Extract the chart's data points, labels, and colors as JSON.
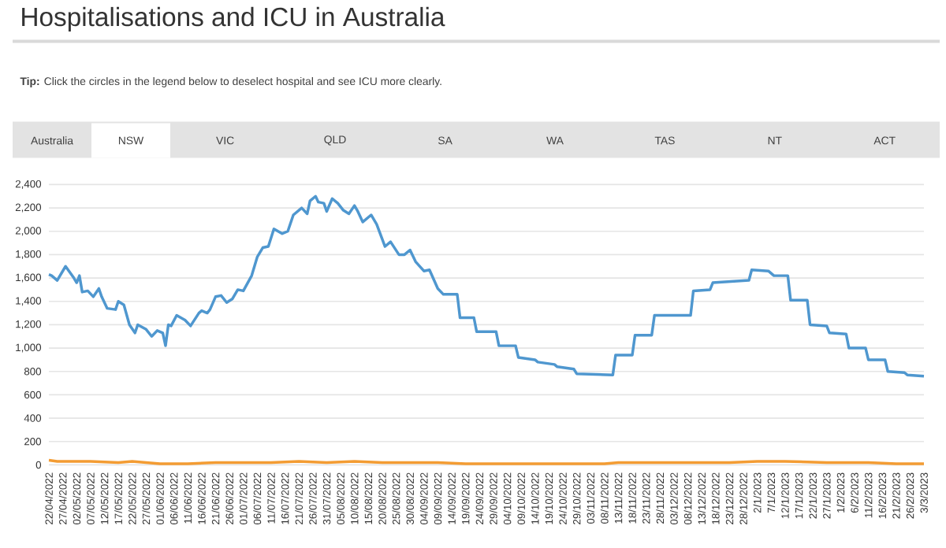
{
  "chart_data": {
    "type": "line",
    "title": "Hospitalisations and ICU in Australia",
    "subtitle": "**Tip:** Click the circles in the legend below to deselect hospital and see ICU more clearly.",
    "annotations": [
      "Australia",
      "NSW",
      "VIC",
      "QLD",
      "SA",
      "WA",
      "TAS",
      "NT",
      "ACT"
    ],
    "xlim": [
      "2022-04-22",
      "2023-03-03"
    ],
    "ylim": [
      0,
      2400
    ],
    "yticks": [
      0,
      200,
      400,
      600,
      800,
      {
        "value": 1000,
        "label": "1,000"
      },
      {
        "value": 1200,
        "label": "1,200"
      },
      {
        "value": 1400,
        "label": "1,400"
      },
      {
        "value": 1600,
        "label": "1,600"
      },
      {
        "value": 1800,
        "label": "1,800"
      },
      {
        "value": 2000,
        "label": "2,000"
      },
      {
        "value": 2200,
        "label": "2,200"
      },
      {
        "value": 2400,
        "label": "2,400"
      }
    ],
    "xticks": [
      {
        "value": "2022-04-22",
        "label": "22/04/2022"
      },
      {
        "value": "2022-04-27",
        "label": "27/04/2022"
      },
      {
        "value": "2022-05-02",
        "label": "02/05/2022"
      },
      {
        "value": "2022-05-07",
        "label": "07/05/2022"
      },
      {
        "value": "2022-05-12",
        "label": "12/05/2022"
      },
      {
        "value": "2022-05-17",
        "label": "17/05/2022"
      },
      {
        "value": "2022-05-22",
        "label": "22/05/2022"
      },
      {
        "value": "2022-05-27",
        "label": "27/05/2022"
      },
      {
        "value": "2022-06-01",
        "label": "01/06/2022"
      },
      {
        "value": "2022-06-06",
        "label": "06/06/2022"
      },
      {
        "value": "2022-06-11",
        "label": "11/06/2022"
      },
      {
        "value": "2022-06-16",
        "label": "16/06/2022"
      },
      {
        "value": "2022-06-21",
        "label": "21/06/2022"
      },
      {
        "value": "2022-06-26",
        "label": "26/06/2022"
      },
      {
        "value": "2022-07-01",
        "label": "01/07/2022"
      },
      {
        "value": "2022-07-06",
        "label": "06/07/2022"
      },
      {
        "value": "2022-07-11",
        "label": "11/07/2022"
      },
      {
        "value": "2022-07-16",
        "label": "16/07/2022"
      },
      {
        "value": "2022-07-21",
        "label": "21/07/2022"
      },
      {
        "value": "2022-07-26",
        "label": "26/07/2022"
      },
      {
        "value": "2022-07-31",
        "label": "31/07/2022"
      },
      {
        "value": "2022-08-05",
        "label": "05/08/2022"
      },
      {
        "value": "2022-08-10",
        "label": "10/08/2022"
      },
      {
        "value": "2022-08-15",
        "label": "15/08/2022"
      },
      {
        "value": "2022-08-20",
        "label": "20/08/2022"
      },
      {
        "value": "2022-08-25",
        "label": "25/08/2022"
      },
      {
        "value": "2022-08-30",
        "label": "30/08/2022"
      },
      {
        "value": "2022-09-04",
        "label": "04/09/2022"
      },
      {
        "value": "2022-09-09",
        "label": "09/09/2022"
      },
      {
        "value": "2022-09-14",
        "label": "14/09/2022"
      },
      {
        "value": "2022-09-19",
        "label": "19/09/2022"
      },
      {
        "value": "2022-09-24",
        "label": "24/09/2022"
      },
      {
        "value": "2022-09-29",
        "label": "29/09/2022"
      },
      {
        "value": "2022-10-04",
        "label": "04/10/2022"
      },
      {
        "value": "2022-10-09",
        "label": "09/10/2022"
      },
      {
        "value": "2022-10-14",
        "label": "14/10/2022"
      },
      {
        "value": "2022-10-19",
        "label": "19/10/2022"
      },
      {
        "value": "2022-10-24",
        "label": "24/10/2022"
      },
      {
        "value": "2022-10-29",
        "label": "29/10/2022"
      },
      {
        "value": "2022-11-03",
        "label": "03/11/2022"
      },
      {
        "value": "2022-11-08",
        "label": "08/11/2022"
      },
      {
        "value": "2022-11-13",
        "label": "13/11/2022"
      },
      {
        "value": "2022-11-18",
        "label": "18/11/2022"
      },
      {
        "value": "2022-11-23",
        "label": "23/11/2022"
      },
      {
        "value": "2022-11-28",
        "label": "28/11/2022"
      },
      {
        "value": "2022-12-03",
        "label": "03/12/2022"
      },
      {
        "value": "2022-12-08",
        "label": "08/12/2022"
      },
      {
        "value": "2022-12-13",
        "label": "13/12/2022"
      },
      {
        "value": "2022-12-18",
        "label": "18/12/2022"
      },
      {
        "value": "2022-12-23",
        "label": "23/12/2022"
      },
      {
        "value": "2022-12-28",
        "label": "28/12/2022"
      },
      {
        "value": "2023-01-02",
        "label": "2/1/2023"
      },
      {
        "value": "2023-01-07",
        "label": "7/1/2023"
      },
      {
        "value": "2023-01-12",
        "label": "12/1/2023"
      },
      {
        "value": "2023-01-17",
        "label": "17/1/2023"
      },
      {
        "value": "2023-01-22",
        "label": "22/1/2023"
      },
      {
        "value": "2023-01-27",
        "label": "27/1/2023"
      },
      {
        "value": "2023-02-01",
        "label": "1/2/2023"
      },
      {
        "value": "2023-02-06",
        "label": "6/2/2023"
      },
      {
        "value": "2023-02-11",
        "label": "11/2/2023"
      },
      {
        "value": "2023-02-16",
        "label": "16/2/2023"
      },
      {
        "value": "2023-02-21",
        "label": "21/2/2023"
      },
      {
        "value": "2023-02-26",
        "label": "26/2/2023"
      },
      {
        "value": "2023-03-03",
        "label": "3/3/2023"
      }
    ],
    "grid": "y",
    "line_style": "solid",
    "series": [
      {
        "color": "#4f97cf",
        "x": [
          "2022-04-22",
          "2022-04-23",
          "2022-04-25",
          "2022-04-28",
          "2022-05-01",
          "2022-05-02",
          "2022-05-03",
          "2022-05-04",
          "2022-05-06",
          "2022-05-08",
          "2022-05-10",
          "2022-05-11",
          "2022-05-13",
          "2022-05-16",
          "2022-05-17",
          "2022-05-19",
          "2022-05-21",
          "2022-05-23",
          "2022-05-24",
          "2022-05-27",
          "2022-05-29",
          "2022-05-31",
          "2022-06-02",
          "2022-06-03",
          "2022-06-04",
          "2022-06-05",
          "2022-06-07",
          "2022-06-10",
          "2022-06-12",
          "2022-06-15",
          "2022-06-16",
          "2022-06-18",
          "2022-06-19",
          "2022-06-21",
          "2022-06-23",
          "2022-06-25",
          "2022-06-27",
          "2022-06-29",
          "2022-07-01",
          "2022-07-04",
          "2022-07-06",
          "2022-07-08",
          "2022-07-10",
          "2022-07-12",
          "2022-07-15",
          "2022-07-17",
          "2022-07-19",
          "2022-07-22",
          "2022-07-24",
          "2022-07-25",
          "2022-07-27",
          "2022-07-28",
          "2022-07-30",
          "2022-07-31",
          "2022-08-02",
          "2022-08-04",
          "2022-08-06",
          "2022-08-08",
          "2022-08-10",
          "2022-08-11",
          "2022-08-13",
          "2022-08-16",
          "2022-08-18",
          "2022-08-21",
          "2022-08-23",
          "2022-08-26",
          "2022-08-28",
          "2022-08-30",
          "2022-09-01",
          "2022-09-04",
          "2022-09-06",
          "2022-09-09",
          "2022-09-11",
          "2022-09-16",
          "2022-09-17",
          "2022-09-22",
          "2022-09-23",
          "2022-09-30",
          "2022-10-01",
          "2022-10-07",
          "2022-10-08",
          "2022-10-14",
          "2022-10-15",
          "2022-10-21",
          "2022-10-22",
          "2022-10-28",
          "2022-10-29",
          "2022-11-11",
          "2022-11-12",
          "2022-11-18",
          "2022-11-19",
          "2022-11-25",
          "2022-11-26",
          "2022-12-09",
          "2022-12-10",
          "2022-12-16",
          "2022-12-17",
          "2022-12-30",
          "2022-12-31",
          "2023-01-06",
          "2023-01-08",
          "2023-01-13",
          "2023-01-14",
          "2023-01-20",
          "2023-01-21",
          "2023-01-27",
          "2023-01-28",
          "2023-02-03",
          "2023-02-04",
          "2023-02-10",
          "2023-02-11",
          "2023-02-17",
          "2023-02-18",
          "2023-02-24",
          "2023-02-25",
          "2023-03-03"
        ],
        "values": [
          1630,
          1620,
          1580,
          1700,
          1600,
          1560,
          1620,
          1480,
          1490,
          1440,
          1510,
          1440,
          1340,
          1330,
          1400,
          1370,
          1200,
          1130,
          1200,
          1160,
          1100,
          1150,
          1130,
          1020,
          1200,
          1190,
          1280,
          1240,
          1190,
          1300,
          1320,
          1300,
          1330,
          1440,
          1450,
          1390,
          1420,
          1500,
          1490,
          1620,
          1780,
          1860,
          1870,
          2020,
          1980,
          2000,
          2140,
          2200,
          2150,
          2260,
          2300,
          2250,
          2240,
          2170,
          2280,
          2240,
          2180,
          2150,
          2220,
          2180,
          2080,
          2140,
          2060,
          1870,
          1910,
          1800,
          1800,
          1840,
          1740,
          1660,
          1670,
          1510,
          1460,
          1460,
          1260,
          1260,
          1140,
          1140,
          1020,
          1020,
          920,
          900,
          880,
          860,
          840,
          820,
          780,
          770,
          940,
          940,
          1110,
          1110,
          1280,
          1280,
          1490,
          1500,
          1560,
          1580,
          1670,
          1660,
          1620,
          1620,
          1410,
          1410,
          1200,
          1190,
          1130,
          1120,
          1000,
          1000,
          900,
          900,
          800,
          790,
          770,
          760
        ]
      },
      {
        "color": "#f39c33",
        "x": [
          "2022-04-22",
          "2022-04-25",
          "2022-05-02",
          "2022-05-07",
          "2022-05-17",
          "2022-05-22",
          "2022-06-01",
          "2022-06-11",
          "2022-06-21",
          "2022-07-01",
          "2022-07-11",
          "2022-07-21",
          "2022-07-31",
          "2022-08-10",
          "2022-08-20",
          "2022-08-30",
          "2022-09-09",
          "2022-09-19",
          "2022-09-29",
          "2022-10-09",
          "2022-10-19",
          "2022-10-29",
          "2022-11-08",
          "2022-11-13",
          "2022-11-23",
          "2022-12-08",
          "2022-12-23",
          "2023-01-02",
          "2023-01-12",
          "2023-01-27",
          "2023-02-11",
          "2023-02-21",
          "2023-03-03"
        ],
        "values": [
          40,
          30,
          30,
          30,
          20,
          30,
          10,
          10,
          20,
          20,
          20,
          30,
          20,
          30,
          20,
          20,
          20,
          10,
          10,
          10,
          10,
          10,
          10,
          20,
          20,
          20,
          20,
          30,
          30,
          20,
          20,
          10,
          10
        ]
      }
    ]
  }
}
